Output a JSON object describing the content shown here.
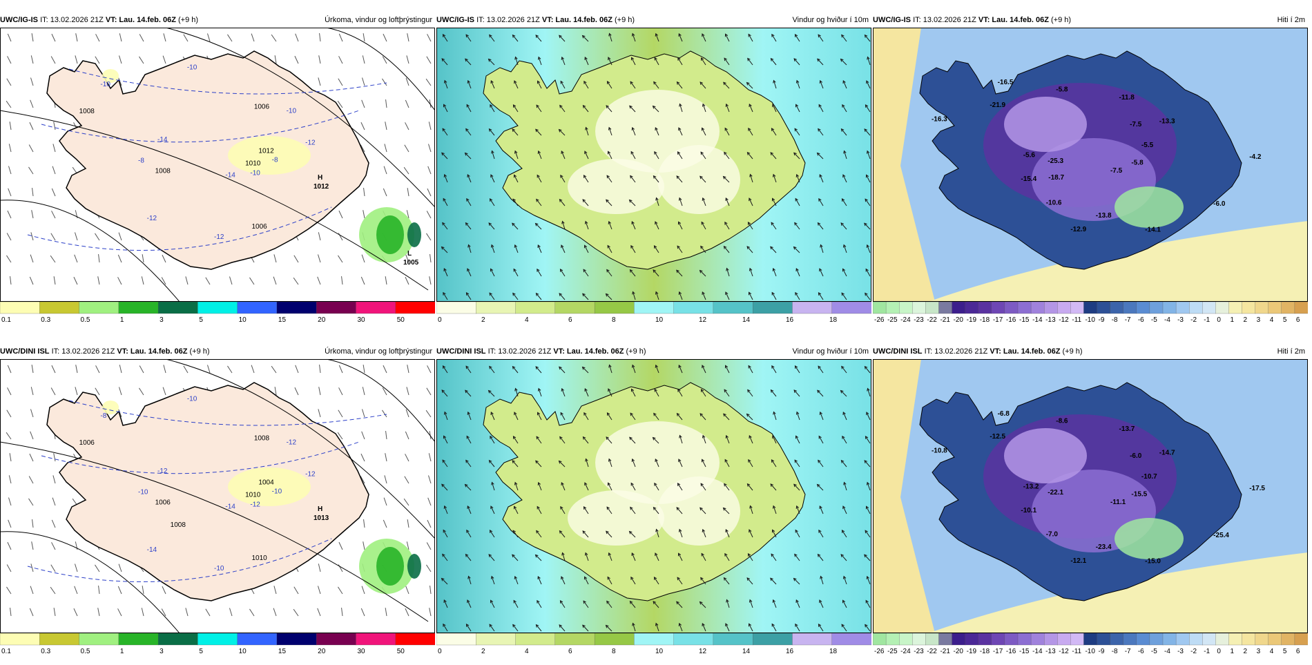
{
  "rows": [
    {
      "model": "UWC/IG-IS",
      "panels": [
        {
          "type": "precip",
          "it": "IT: 13.02.2026 21Z",
          "vt": "VT: Lau. 14.feb. 06Z",
          "lead": "(+9 h)",
          "title": "Úrkoma, vindur og loftþrýstingur",
          "isobar_labels": [
            "1010",
            "1008",
            "1006",
            "1006",
            "1008",
            "1012"
          ],
          "temp_labels": [
            "-14",
            "-14",
            "-12",
            "-12",
            "-10",
            "-10",
            "-8",
            "-10",
            "-12",
            "-10",
            "-8"
          ],
          "pressure_centers": [
            {
              "sym": "H",
              "val": "1012"
            },
            {
              "sym": "L",
              "val": "1005"
            }
          ]
        },
        {
          "type": "wind",
          "it": "IT: 13.02.2026 21Z",
          "vt": "VT: Lau. 14.feb. 06Z",
          "lead": "(+9 h)",
          "title": "Vindur og hviður í 10m"
        },
        {
          "type": "temp",
          "it": "IT: 13.02.2026 21Z",
          "vt": "VT: Lau. 14.feb. 06Z",
          "lead": "(+9 h)",
          "title": "Hiti í 2m",
          "value_labels": [
            "-7.5",
            "-5.6",
            "-13.3",
            "-12.9",
            "-16.5",
            "-5.8",
            "-15.4",
            "-11.8",
            "-14.1",
            "-16.3",
            "-5.5",
            "-10.6",
            "-5.8",
            "-6.0",
            "-25.3",
            "-7.5",
            "-13.8",
            "-21.9",
            "-4.2",
            "-18.7"
          ]
        }
      ]
    },
    {
      "model": "UWC/DINI ISL",
      "panels": [
        {
          "type": "precip",
          "it": "IT: 13.02.2026 21Z",
          "vt": "VT: Lau. 14.feb. 06Z",
          "lead": "(+9 h)",
          "title": "Úrkoma, vindur og loftþrýstingur",
          "isobar_labels": [
            "1010",
            "1006",
            "1008",
            "1010",
            "1006",
            "1004",
            "1008"
          ],
          "temp_labels": [
            "-14",
            "-12",
            "-12",
            "-14",
            "-10",
            "-12",
            "-10",
            "-12",
            "-10",
            "-8",
            "-10"
          ],
          "pressure_centers": [
            {
              "sym": "H",
              "val": "1013"
            }
          ]
        },
        {
          "type": "wind",
          "it": "IT: 13.02.2026 21Z",
          "vt": "VT: Lau. 14.feb. 06Z",
          "lead": "(+9 h)",
          "title": "Vindur og hviður í 10m"
        },
        {
          "type": "temp",
          "it": "IT: 13.02.2026 21Z",
          "vt": "VT: Lau. 14.feb. 06Z",
          "lead": "(+9 h)",
          "title": "Hiti í 2m",
          "value_labels": [
            "-11.1",
            "-13.2",
            "-14.7",
            "-12.1",
            "-6.8",
            "-15.5",
            "-10.1",
            "-13.7",
            "-15.0",
            "-10.8",
            "-10.7",
            "-7.0",
            "-8.6",
            "-25.4",
            "-22.1",
            "-6.0",
            "-23.4",
            "-12.5",
            "-17.5"
          ]
        }
      ]
    }
  ],
  "legends": {
    "precip": {
      "ticks": [
        "0.1",
        "0.3",
        "0.5",
        "1",
        "3",
        "5",
        "10",
        "15",
        "20",
        "30",
        "50"
      ],
      "colors": [
        "#fdfdb4",
        "#c8c832",
        "#a0f080",
        "#28b428",
        "#0a6e46",
        "#00f0e6",
        "#3264ff",
        "#00006e",
        "#780050",
        "#f0147a",
        "#ff0000"
      ]
    },
    "wind": {
      "ticks": [
        "0",
        "2",
        "4",
        "6",
        "8",
        "10",
        "12",
        "14",
        "16",
        "18"
      ],
      "colors": [
        "#fbfde6",
        "#e8f5b4",
        "#d2eb8c",
        "#b4d764",
        "#96c846",
        "#a0f5f5",
        "#78e1e6",
        "#55c3c8",
        "#3ca0a5",
        "#c8b4f0",
        "#a08ce6"
      ]
    },
    "temp": {
      "ticks": [
        "-26",
        "-25",
        "-24",
        "-23",
        "-22",
        "-21",
        "-20",
        "-19",
        "-18",
        "-17",
        "-16",
        "-15",
        "-14",
        "-13",
        "-12",
        "-11",
        "-10",
        "-9",
        "-8",
        "-7",
        "-6",
        "-5",
        "-4",
        "-3",
        "-2",
        "-1",
        "0",
        "1",
        "2",
        "3",
        "4",
        "5",
        "6"
      ],
      "colors": [
        "#a0e6a0",
        "#b4f0b4",
        "#c8f5c8",
        "#dcf5dc",
        "#c8e6c8",
        "#7a7aa0",
        "#3c1e8c",
        "#4b2896",
        "#5a32a0",
        "#6e46b4",
        "#7d5ac3",
        "#8c6ed2",
        "#a082dc",
        "#b496e6",
        "#c8aaf0",
        "#d2b9f5",
        "#1e3c82",
        "#2d5096",
        "#3c64aa",
        "#4b78be",
        "#5a8cd2",
        "#6ea0dc",
        "#82b4e6",
        "#a0c8f0",
        "#bedcf5",
        "#d2e6f5",
        "#e6f0dc",
        "#f5f0b4",
        "#f5e6a0",
        "#f0d78c",
        "#ebc878",
        "#e1b464",
        "#d7a050"
      ]
    }
  }
}
